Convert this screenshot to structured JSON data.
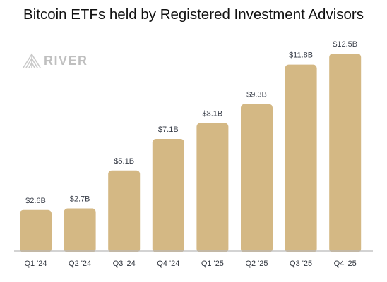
{
  "chart_data": {
    "type": "bar",
    "title": "Bitcoin ETFs held by Registered Investment Advisors",
    "categories": [
      "Q1 '24",
      "Q2 '24",
      "Q3 '24",
      "Q4 '24",
      "Q1 '25",
      "Q2 '25",
      "Q3 '25",
      "Q4 '25"
    ],
    "values": [
      2.6,
      2.7,
      5.1,
      7.1,
      8.1,
      9.3,
      11.8,
      12.5
    ],
    "value_labels": [
      "$2.6B",
      "$2.7B",
      "$5.1B",
      "$7.1B",
      "$8.1B",
      "$9.3B",
      "$11.8B",
      "$12.5B"
    ],
    "xlabel": "",
    "ylabel": "",
    "ylim": [
      0,
      12.5
    ],
    "grid": false,
    "bar_color": "#d4b884",
    "axis_color": "#b9b9b9"
  },
  "brand": {
    "name": "RIVER",
    "icon": "river-mountain-icon",
    "color": "#bfbfbf"
  }
}
